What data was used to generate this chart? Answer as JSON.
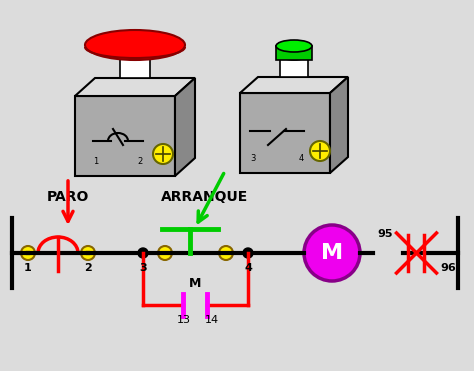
{
  "bg_color": "#dcdcdc",
  "line_color": "#000000",
  "red_color": "#ff0000",
  "green_color": "#00cc00",
  "magenta_color": "#ff00ff",
  "yellow_color": "#ffee00",
  "motor_fill": "#ee00ee",
  "motor_edge": "#880088",
  "box_face": "#aaaaaa",
  "box_edge": "#000000",
  "white": "#ffffff",
  "paro_label": "PARO",
  "arranque_label": "ARRANQUE",
  "motor_label": "M",
  "m_label": "M",
  "lw_main": 2.5,
  "lw_bus": 3.0,
  "figw": 4.74,
  "figh": 3.71,
  "dpi": 100
}
